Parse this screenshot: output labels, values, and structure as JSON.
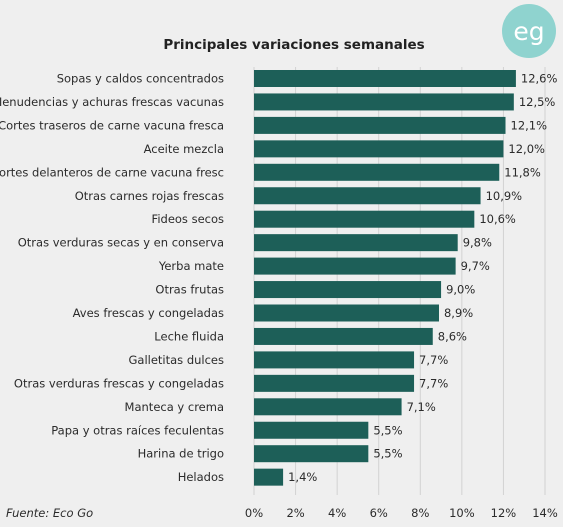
{
  "chart_data": {
    "type": "bar",
    "orientation": "horizontal",
    "title": "Principales variaciones semanales",
    "categories": [
      "Sopas y caldos concentrados",
      "Menudencias y achuras frescas vacunas",
      "Cortes traseros de carne vacuna fresca",
      "Aceite mezcla",
      "Cortes delanteros de carne vacuna fresc",
      "Otras carnes rojas frescas",
      "Fideos secos",
      "Otras verduras secas y en conserva",
      "Yerba mate",
      "Otras frutas",
      "Aves frescas y congeladas",
      "Leche fluida",
      "Galletitas dulces",
      "Otras verduras frescas y congeladas",
      "Manteca y crema",
      "Papa y otras raíces feculentas",
      "Harina de trigo",
      "Helados"
    ],
    "values": [
      12.6,
      12.5,
      12.1,
      12.0,
      11.8,
      10.9,
      10.6,
      9.8,
      9.7,
      9.0,
      8.9,
      8.6,
      7.7,
      7.7,
      7.1,
      5.5,
      5.5,
      1.4
    ],
    "value_labels": [
      "12,6%",
      "12,5%",
      "12,1%",
      "12,0%",
      "11,8%",
      "10,9%",
      "10,6%",
      "9,8%",
      "9,7%",
      "9,0%",
      "8,9%",
      "8,6%",
      "7,7%",
      "7,7%",
      "7,1%",
      "5,5%",
      "5,5%",
      "1,4%"
    ],
    "x_ticks": [
      0,
      2,
      4,
      6,
      8,
      10,
      12,
      14
    ],
    "x_tick_labels": [
      "0%",
      "2%",
      "4%",
      "6%",
      "8%",
      "10%",
      "12%",
      "14%"
    ],
    "xlim": [
      0,
      14
    ],
    "grid": true,
    "bar_color": "#1d5f58"
  },
  "source": "Fuente: Eco Go",
  "logo": {
    "text": "eg",
    "color": "#8fd3cf"
  }
}
